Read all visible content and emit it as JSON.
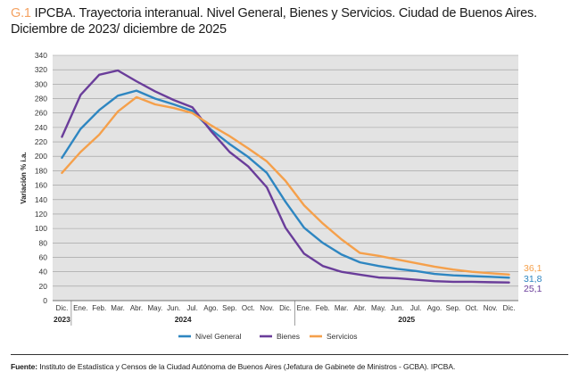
{
  "header": {
    "chart_number": "G.1",
    "title": "IPCBA. Trayectoria interanual. Nivel General, Bienes y Servicios. Ciudad de Buenos Aires. Diciembre de 2023/ diciembre de 2025"
  },
  "source": {
    "label": "Fuente:",
    "text": "Instituto de Estadística y Censos de la Ciudad Autónoma de Buenos Aires (Jefatura de Gabinete de Ministros - GCBA). IPCBA."
  },
  "chart_data": {
    "type": "line",
    "title": "IPCBA. Trayectoria interanual. Nivel General, Bienes y Servicios. Ciudad de Buenos Aires. Diciembre de 2023/ diciembre de 2025",
    "ylabel": "Variación % i.a.",
    "xlabel": "",
    "ylim": [
      0,
      340
    ],
    "yticks": [
      0,
      20,
      40,
      60,
      80,
      100,
      120,
      140,
      160,
      180,
      200,
      220,
      240,
      260,
      280,
      300,
      320,
      340
    ],
    "grid": true,
    "legend_position": "bottom",
    "categories": [
      "Dic.",
      "Ene.",
      "Feb.",
      "Mar.",
      "Abr.",
      "May.",
      "Jun.",
      "Jul.",
      "Ago.",
      "Sep.",
      "Oct.",
      "Nov.",
      "Dic.",
      "Ene.",
      "Feb.",
      "Mar.",
      "Abr.",
      "May.",
      "Jun.",
      "Jul.",
      "Ago.",
      "Sep.",
      "Oct.",
      "Nov.",
      "Dic."
    ],
    "year_labels": [
      {
        "label": "2023",
        "index": 0
      },
      {
        "label": "2024",
        "index": 6.5
      },
      {
        "label": "2025",
        "index": 18.5
      }
    ],
    "series": [
      {
        "name": "Nivel General",
        "color": "#2e86c1",
        "values": [
          198,
          238,
          264,
          284,
          291,
          280,
          272,
          263,
          237,
          217,
          199,
          177,
          137,
          101,
          80,
          64,
          53,
          48,
          44,
          41,
          37,
          35,
          34,
          33,
          31.8
        ],
        "end_label": "31,8"
      },
      {
        "name": "Bienes",
        "color": "#6a3d9a",
        "values": [
          227,
          285,
          313,
          319,
          304,
          290,
          278,
          268,
          235,
          206,
          186,
          157,
          101,
          65,
          48,
          40,
          36,
          32,
          31,
          29,
          27,
          26,
          26,
          25.5,
          25.1
        ],
        "end_label": "25,1"
      },
      {
        "name": "Servicios",
        "color": "#f5a04b",
        "values": [
          177,
          206,
          230,
          262,
          282,
          272,
          267,
          260,
          243,
          228,
          211,
          193,
          166,
          132,
          107,
          85,
          66,
          62,
          57,
          52,
          47,
          43,
          40,
          38,
          36.1
        ],
        "end_label": "36,1"
      }
    ]
  }
}
